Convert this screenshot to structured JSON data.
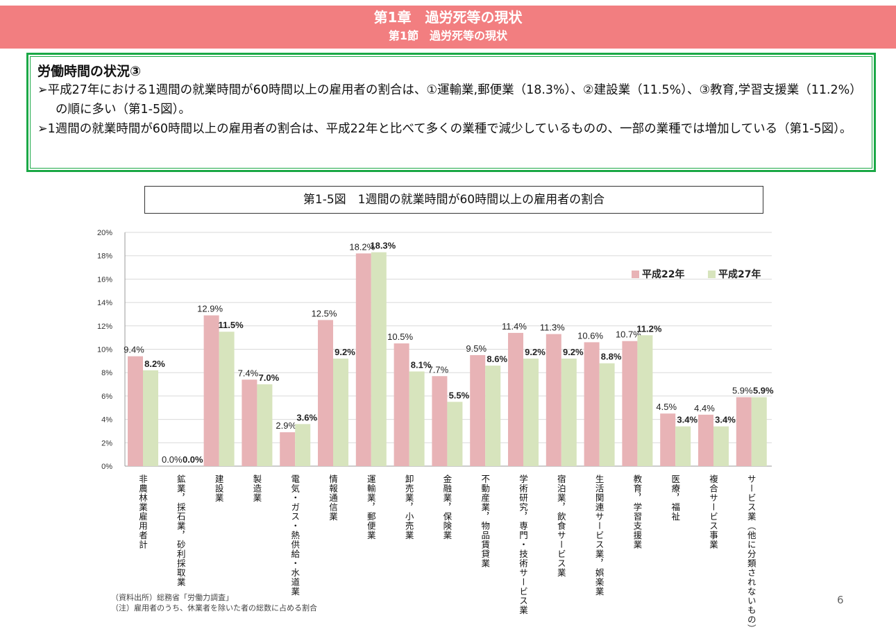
{
  "header": {
    "chapter": "第1章　過労死等の現状",
    "section": "第1節　過労死等の現状"
  },
  "summary": {
    "heading": "労働時間の状況③",
    "bullets": [
      "➢平成27年における1週間の就業時間が60時間以上の雇用者の割合は、①運輸業,郵便業（18.3%）、②建設業（11.5%）、③教育,学習支援業（11.2%）の順に多い（第1-5図）。",
      "➢1週間の就業時間が60時間以上の雇用者の割合は、平成22年と比べて多くの業種で減少しているものの、一部の業種では増加している（第1-5図）。"
    ]
  },
  "chart_data": {
    "type": "bar",
    "title": "第1-5図　1週間の就業時間が60時間以上の雇用者の割合",
    "categories": [
      "非農林業雇用者計",
      "鉱業，採石業，砂利採取業",
      "建設業",
      "製造業",
      "電気・ガス・熱供給・水道業",
      "情報通信業",
      "運輸業，郵便業",
      "卸売業，小売業",
      "金融業，保険業",
      "不動産業，物品賃貸業",
      "学術研究，専門・技術サービス業",
      "宿泊業，飲食サービス業",
      "生活関連サービス業，娯楽業",
      "教育，学習支援業",
      "医療，福祉",
      "複合サービス事業",
      "サービス業（他に分類されないもの）"
    ],
    "series": [
      {
        "name": "平成22年",
        "color": "#e8b3b6",
        "values": [
          9.4,
          0.0,
          12.9,
          7.4,
          2.9,
          12.5,
          18.2,
          10.5,
          7.7,
          9.5,
          11.4,
          11.3,
          10.6,
          10.7,
          4.5,
          4.4,
          5.9
        ]
      },
      {
        "name": "平成27年",
        "color": "#d7e4bd",
        "values": [
          8.2,
          0.0,
          11.5,
          7.0,
          3.6,
          9.2,
          18.3,
          8.1,
          5.5,
          8.6,
          9.2,
          9.2,
          8.8,
          11.2,
          3.4,
          3.4,
          5.9
        ]
      }
    ],
    "yticks": [
      "0%",
      "2%",
      "4%",
      "6%",
      "8%",
      "10%",
      "12%",
      "14%",
      "16%",
      "18%",
      "20%"
    ],
    "ylim": [
      0,
      20
    ],
    "unit": "%",
    "grid": true,
    "legend": "top-right"
  },
  "notes": [
    "（資料出所）総務省「労働力調査」",
    "（注）雇用者のうち、休業者を除いた者の総数に占める割合"
  ],
  "page_number": "6"
}
